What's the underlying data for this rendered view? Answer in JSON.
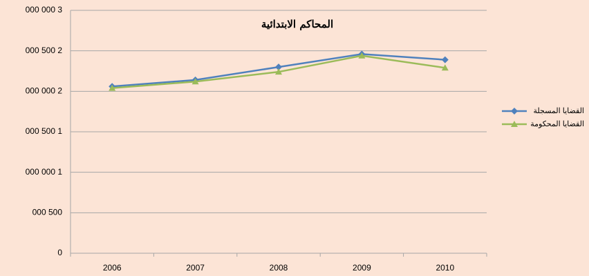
{
  "chart_data": {
    "type": "line",
    "title": "المحاكم الابتدائية",
    "categories": [
      "2006",
      "2007",
      "2008",
      "2009",
      "2010"
    ],
    "series": [
      {
        "name": "القضايا المسجلة",
        "color": "#4f81bd",
        "marker": "diamond",
        "values": [
          2060000,
          2140000,
          2300000,
          2460000,
          2390000
        ]
      },
      {
        "name": "القضايا المحكومة",
        "color": "#9bbb59",
        "marker": "triangle",
        "values": [
          2040000,
          2120000,
          2240000,
          2440000,
          2290000
        ]
      }
    ],
    "ylim": [
      0,
      3000000
    ],
    "yticks": [
      0,
      {
        "value": 500000,
        "label": "000 500"
      },
      {
        "value": 1000000,
        "label": "000 000 1"
      },
      {
        "value": 1500000,
        "label": "000 500 1"
      },
      {
        "value": 2000000,
        "label": "000 000 2"
      },
      {
        "value": 2500000,
        "label": "000 500 2"
      },
      {
        "value": 3000000,
        "label": "000 000 3"
      }
    ],
    "grid": true,
    "legend": "right",
    "background": "#fce4d6"
  }
}
